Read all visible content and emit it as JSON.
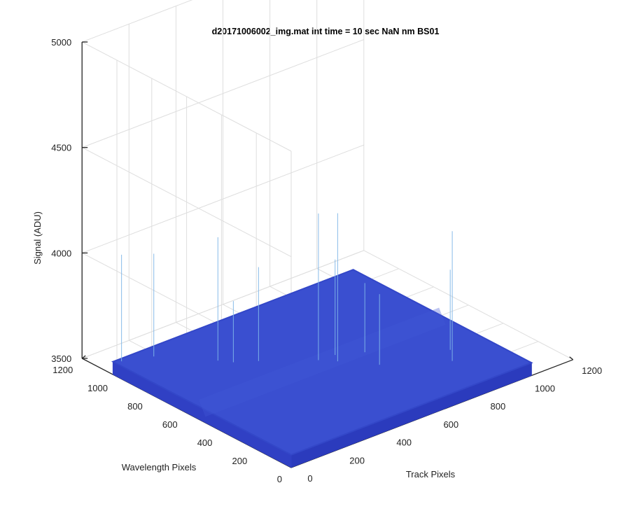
{
  "chart_data": {
    "type": "surface",
    "title": "d20171006002_img.mat int time = 10 sec  NaN nm BS01",
    "xlabel": "Track Pixels",
    "ylabel": "Wavelength Pixels",
    "zlabel": "Signal (ADU)",
    "xlim": [
      0,
      1200
    ],
    "ylim": [
      0,
      1200
    ],
    "zlim": [
      3500,
      5000
    ],
    "x_ticks": [
      0,
      200,
      400,
      600,
      800,
      1000,
      1200
    ],
    "y_ticks": [
      0,
      200,
      400,
      600,
      800,
      1000,
      1200
    ],
    "z_ticks": [
      3500,
      4000,
      4500,
      5000
    ],
    "x_tick_labels": [
      "0",
      "200",
      "400",
      "600",
      "800",
      "1000",
      "1200"
    ],
    "y_tick_labels": [
      "0",
      "200",
      "400",
      "600",
      "800",
      "1000",
      "1200"
    ],
    "z_tick_labels": [
      "3500",
      "4000",
      "4500",
      "5000"
    ],
    "x_extent": [
      1,
      1024
    ],
    "y_extent": [
      1,
      1024
    ],
    "baseline_signal": 3500,
    "baseline_signal_max": 3560,
    "colormap": "parula",
    "surface_color": "#3a4fd0",
    "spikes": [
      {
        "track": 24,
        "wavelength": 1006,
        "signal": 4065
      },
      {
        "track": 126,
        "wavelength": 958,
        "signal": 4047
      },
      {
        "track": 264,
        "wavelength": 776,
        "signal": 4145
      },
      {
        "track": 294,
        "wavelength": 728,
        "signal": 3850
      },
      {
        "track": 362,
        "wavelength": 675,
        "signal": 4005
      },
      {
        "track": 513,
        "wavelength": 535,
        "signal": 4255
      },
      {
        "track": 555,
        "wavelength": 481,
        "signal": 4262
      },
      {
        "track": 578,
        "wavelength": 527,
        "signal": 4013
      },
      {
        "track": 641,
        "wavelength": 357,
        "signal": 3895
      },
      {
        "track": 664,
        "wavelength": 472,
        "signal": 3888
      },
      {
        "track": 838,
        "wavelength": 205,
        "signal": 4175
      },
      {
        "track": 885,
        "wavelength": 280,
        "signal": 3940
      }
    ]
  }
}
